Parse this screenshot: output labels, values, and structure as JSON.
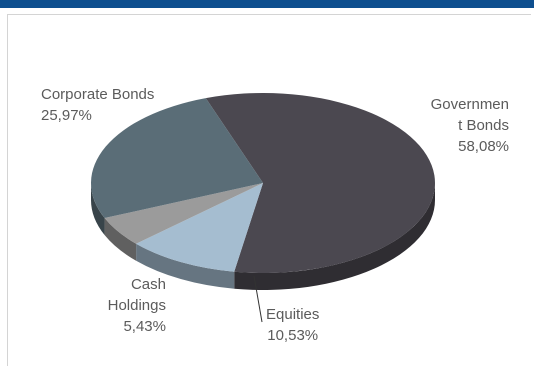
{
  "theme": {
    "header_color": "#0e4f8f",
    "frame_color": "#d4d4d4",
    "label_color": "#5b5b5b"
  },
  "chart_data": {
    "type": "pie",
    "style": "3d",
    "decimal_separator": ",",
    "slices": [
      {
        "label": "Government Bonds",
        "label_lines": [
          "Governmen",
          "t Bonds"
        ],
        "value": 58.08,
        "value_text": "58,08%",
        "color": "#4b4850"
      },
      {
        "label": "Equities",
        "label_lines": [
          "Equities"
        ],
        "value": 10.53,
        "value_text": "10,53%",
        "color": "#a5bdd0"
      },
      {
        "label": "Cash Holdings",
        "label_lines": [
          "Cash",
          "Holdings"
        ],
        "value": 5.43,
        "value_text": "5,43%",
        "color": "#9b9b9b"
      },
      {
        "label": "Corporate Bonds",
        "label_lines": [
          "Corporate Bonds"
        ],
        "value": 25.97,
        "value_text": "25,97%",
        "color": "#5a6d77"
      }
    ]
  }
}
